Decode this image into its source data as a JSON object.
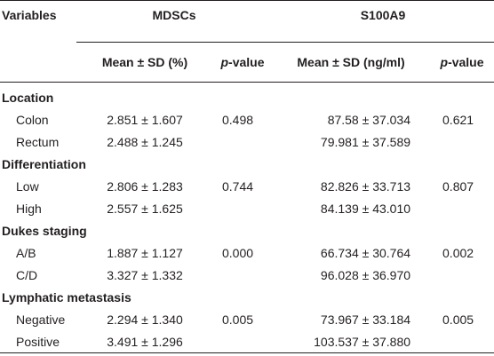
{
  "header": {
    "variables_label": "Variables",
    "group1_label": "MDSCs",
    "group2_label": "S100A9",
    "group1_mean_label": "Mean ± SD (%)",
    "group2_mean_label": "Mean ± SD (ng/ml)",
    "pvalue_italic": "p",
    "pvalue_rest": "-value"
  },
  "sections": [
    {
      "label": "Location",
      "rows": [
        {
          "category": "Colon",
          "mdsc_mean": "2.851 ± 1.607",
          "mdsc_p": "0.498",
          "s100_mean": "87.58 ± 37.034",
          "s100_p": "0.621"
        },
        {
          "category": "Rectum",
          "mdsc_mean": "2.488 ± 1.245",
          "mdsc_p": "",
          "s100_mean": "79.981 ± 37.589",
          "s100_p": ""
        }
      ]
    },
    {
      "label": "Differentiation",
      "rows": [
        {
          "category": "Low",
          "mdsc_mean": "2.806 ± 1.283",
          "mdsc_p": "0.744",
          "s100_mean": "82.826 ± 33.713",
          "s100_p": "0.807"
        },
        {
          "category": "High",
          "mdsc_mean": "2.557 ± 1.625",
          "mdsc_p": "",
          "s100_mean": "84.139 ± 43.010",
          "s100_p": ""
        }
      ]
    },
    {
      "label": "Dukes staging",
      "rows": [
        {
          "category": "A/B",
          "mdsc_mean": "1.887 ± 1.127",
          "mdsc_p": "0.000",
          "s100_mean": "66.734 ± 30.764",
          "s100_p": "0.002"
        },
        {
          "category": "C/D",
          "mdsc_mean": "3.327 ± 1.332",
          "mdsc_p": "",
          "s100_mean": "96.028 ± 36.970",
          "s100_p": ""
        }
      ]
    },
    {
      "label": "Lymphatic metastasis",
      "rows": [
        {
          "category": "Negative",
          "mdsc_mean": "2.294 ± 1.340",
          "mdsc_p": "0.005",
          "s100_mean": "73.967 ± 33.184",
          "s100_p": "0.005"
        },
        {
          "category": "Positive",
          "mdsc_mean": "3.491 ± 1.296",
          "mdsc_p": "",
          "s100_mean": "103.537 ± 37.880",
          "s100_p": ""
        }
      ]
    }
  ]
}
